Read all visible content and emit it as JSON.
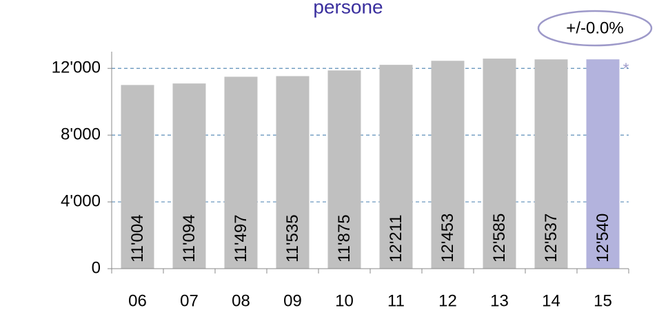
{
  "chart_data": {
    "type": "bar",
    "title": "persone",
    "annotation": "+/-0.0%",
    "note_marker": "*",
    "categories": [
      "06",
      "07",
      "08",
      "09",
      "10",
      "11",
      "12",
      "13",
      "14",
      "15"
    ],
    "values": [
      11004,
      11094,
      11497,
      11535,
      11875,
      12211,
      12453,
      12585,
      12537,
      12540
    ],
    "value_labels": [
      "11'004",
      "11'094",
      "11'497",
      "11'535",
      "11'875",
      "12'211",
      "12'453",
      "12'585",
      "12'537",
      "12'540"
    ],
    "colors": [
      "#c0c0c0",
      "#c0c0c0",
      "#c0c0c0",
      "#c0c0c0",
      "#c0c0c0",
      "#c0c0c0",
      "#c0c0c0",
      "#c0c0c0",
      "#c0c0c0",
      "#b3b3dd"
    ],
    "ylim": [
      0,
      13000
    ],
    "yticks": [
      0,
      {
        "value": 4000,
        "label": "4'000"
      },
      {
        "value": 8000,
        "label": "8'000"
      },
      {
        "value": 12000,
        "label": "12'000"
      }
    ],
    "grid": true
  }
}
